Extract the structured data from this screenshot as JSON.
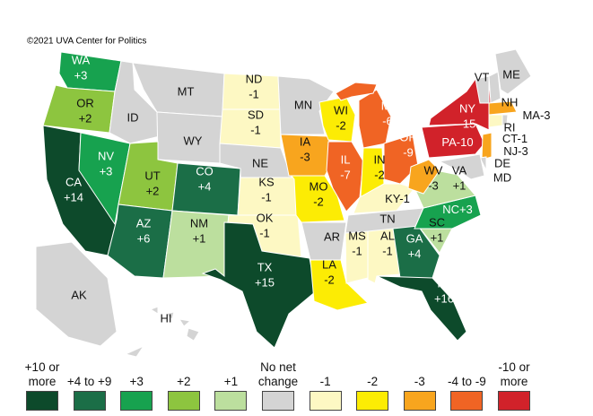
{
  "credit": "©2021 UVA Center for Politics",
  "legend": [
    {
      "label": "+10 or more",
      "color": "#0d4a2b"
    },
    {
      "label": "+4 to +9",
      "color": "#1b6e47"
    },
    {
      "label": "+3",
      "color": "#17a24f"
    },
    {
      "label": "+2",
      "color": "#8dc53f"
    },
    {
      "label": "+1",
      "color": "#bcdf9e"
    },
    {
      "label": "No net change",
      "color": "#d4d4d4"
    },
    {
      "label": "-1",
      "color": "#fdf8c3"
    },
    {
      "label": "-2",
      "color": "#fcec04"
    },
    {
      "label": "-3",
      "color": "#f8a51e"
    },
    {
      "label": "-4 to -9",
      "color": "#f06424"
    },
    {
      "label": "-10 or more",
      "color": "#d1222a"
    }
  ],
  "states": [
    {
      "abbr": "WA",
      "change": "+3",
      "color": "#17a24f"
    },
    {
      "abbr": "OR",
      "change": "+2",
      "color": "#8dc53f"
    },
    {
      "abbr": "CA",
      "change": "+14",
      "color": "#0d4a2b"
    },
    {
      "abbr": "NV",
      "change": "+3",
      "color": "#17a24f"
    },
    {
      "abbr": "ID",
      "color": "#d4d4d4"
    },
    {
      "abbr": "MT",
      "color": "#d4d4d4"
    },
    {
      "abbr": "WY",
      "color": "#d4d4d4"
    },
    {
      "abbr": "UT",
      "change": "+2",
      "color": "#8dc53f"
    },
    {
      "abbr": "CO",
      "change": "+4",
      "color": "#1b6e47"
    },
    {
      "abbr": "AZ",
      "change": "+6",
      "color": "#1b6e47"
    },
    {
      "abbr": "NM",
      "change": "+1",
      "color": "#bcdf9e"
    },
    {
      "abbr": "ND",
      "change": "-1",
      "color": "#fdf8c3"
    },
    {
      "abbr": "SD",
      "change": "-1",
      "color": "#fdf8c3"
    },
    {
      "abbr": "NE",
      "color": "#d4d4d4"
    },
    {
      "abbr": "KS",
      "change": "-1",
      "color": "#fdf8c3"
    },
    {
      "abbr": "OK",
      "change": "-1",
      "color": "#fdf8c3"
    },
    {
      "abbr": "TX",
      "change": "+15",
      "color": "#0d4a2b"
    },
    {
      "abbr": "MN",
      "color": "#d4d4d4"
    },
    {
      "abbr": "IA",
      "change": "-3",
      "color": "#f8a51e"
    },
    {
      "abbr": "MO",
      "change": "-2",
      "color": "#fcec04"
    },
    {
      "abbr": "AR",
      "color": "#d4d4d4"
    },
    {
      "abbr": "LA",
      "change": "-2",
      "color": "#fcec04"
    },
    {
      "abbr": "WI",
      "change": "-2",
      "color": "#fcec04"
    },
    {
      "abbr": "IL",
      "change": "-7",
      "color": "#f06424"
    },
    {
      "abbr": "MI",
      "change": "-6",
      "color": "#f06424"
    },
    {
      "abbr": "IN",
      "change": "-2",
      "color": "#fcec04"
    },
    {
      "abbr": "OH",
      "change": "-9",
      "color": "#f06424"
    },
    {
      "abbr": "KY",
      "change": "-1",
      "color": "#fdf8c3"
    },
    {
      "abbr": "TN",
      "color": "#d4d4d4"
    },
    {
      "abbr": "MS",
      "change": "-1",
      "color": "#fdf8c3"
    },
    {
      "abbr": "AL",
      "change": "-1",
      "color": "#fdf8c3"
    },
    {
      "abbr": "GA",
      "change": "+4",
      "color": "#1b6e47"
    },
    {
      "abbr": "FL",
      "change": "+16",
      "color": "#0d4a2b"
    },
    {
      "abbr": "SC",
      "change": "+1",
      "color": "#bcdf9e"
    },
    {
      "abbr": "NC",
      "change": "+3",
      "color": "#17a24f"
    },
    {
      "abbr": "VA",
      "change": "+1",
      "color": "#bcdf9e"
    },
    {
      "abbr": "WV",
      "change": "-3",
      "color": "#f8a51e"
    },
    {
      "abbr": "PA",
      "change": "-10",
      "color": "#d1222a"
    },
    {
      "abbr": "NY",
      "change": "-15",
      "color": "#d1222a"
    },
    {
      "abbr": "VT",
      "color": "#d4d4d4"
    },
    {
      "abbr": "NH",
      "color": "#d4d4d4"
    },
    {
      "abbr": "ME",
      "color": "#d4d4d4"
    },
    {
      "abbr": "MA",
      "change": "-3",
      "color": "#f8a51e"
    },
    {
      "abbr": "CT",
      "change": "-1",
      "color": "#fdf8c3"
    },
    {
      "abbr": "RI",
      "color": "#d4d4d4"
    },
    {
      "abbr": "NJ",
      "change": "-3",
      "color": "#f8a51e"
    },
    {
      "abbr": "DE",
      "color": "#d4d4d4"
    },
    {
      "abbr": "MD",
      "color": "#d4d4d4"
    },
    {
      "abbr": "AK",
      "color": "#d4d4d4"
    },
    {
      "abbr": "HI",
      "color": "#d4d4d4"
    }
  ]
}
